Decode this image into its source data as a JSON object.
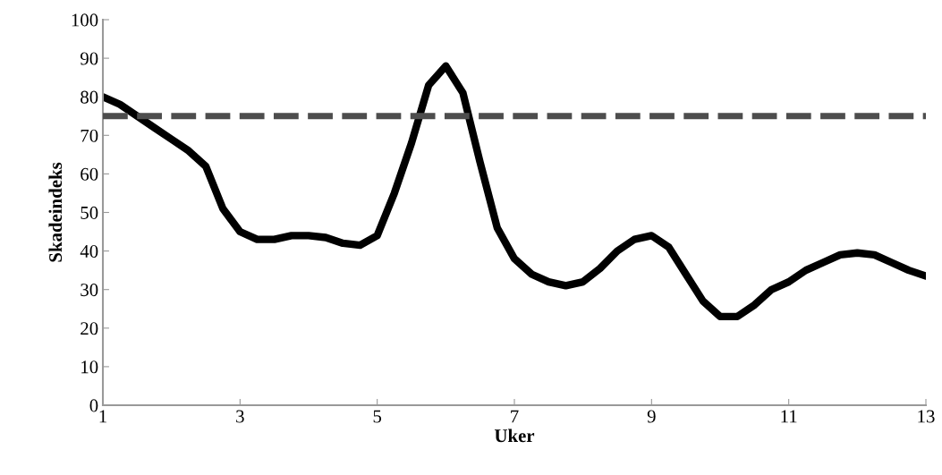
{
  "chart_data": {
    "type": "line",
    "xlabel": "Uker",
    "ylabel": "Skadeindeks",
    "series": [
      {
        "color": "#000000",
        "x": [
          1,
          1.25,
          1.5,
          1.75,
          2,
          2.25,
          2.5,
          2.75,
          3,
          3.25,
          3.5,
          3.75,
          4,
          4.25,
          4.5,
          4.75,
          5,
          5.25,
          5.5,
          5.75,
          6,
          6.25,
          6.5,
          6.75,
          7,
          7.25,
          7.5,
          7.75,
          8,
          8.25,
          8.5,
          8.75,
          9,
          9.25,
          9.5,
          9.75,
          10,
          10.25,
          10.5,
          10.75,
          11,
          11.25,
          11.5,
          11.75,
          12,
          12.25,
          12.5,
          12.75,
          13
        ],
        "values": [
          80,
          78,
          75,
          72,
          69,
          66,
          62,
          51,
          45,
          43,
          43,
          44,
          44,
          43.5,
          42,
          41.5,
          44,
          55,
          68,
          83,
          88,
          81,
          63,
          46,
          38,
          34,
          32,
          31,
          32,
          35.5,
          40,
          43,
          44,
          41,
          34,
          27,
          23,
          23,
          26,
          30,
          32,
          35,
          37,
          39,
          39.5,
          39,
          37,
          35,
          33.5
        ]
      }
    ],
    "xlim": [
      1,
      13
    ],
    "xticks": [
      1,
      3,
      5,
      7,
      9,
      11,
      13
    ],
    "ylim": [
      0,
      100
    ],
    "yticks": [
      0,
      10,
      20,
      30,
      40,
      50,
      60,
      70,
      80,
      90,
      100
    ],
    "ref_lines": [
      {
        "axis": "y",
        "value": 75,
        "color": "#4d4d4d",
        "line_style": "dashed"
      }
    ],
    "grid": false,
    "marker": "none",
    "line_style": "solid"
  }
}
